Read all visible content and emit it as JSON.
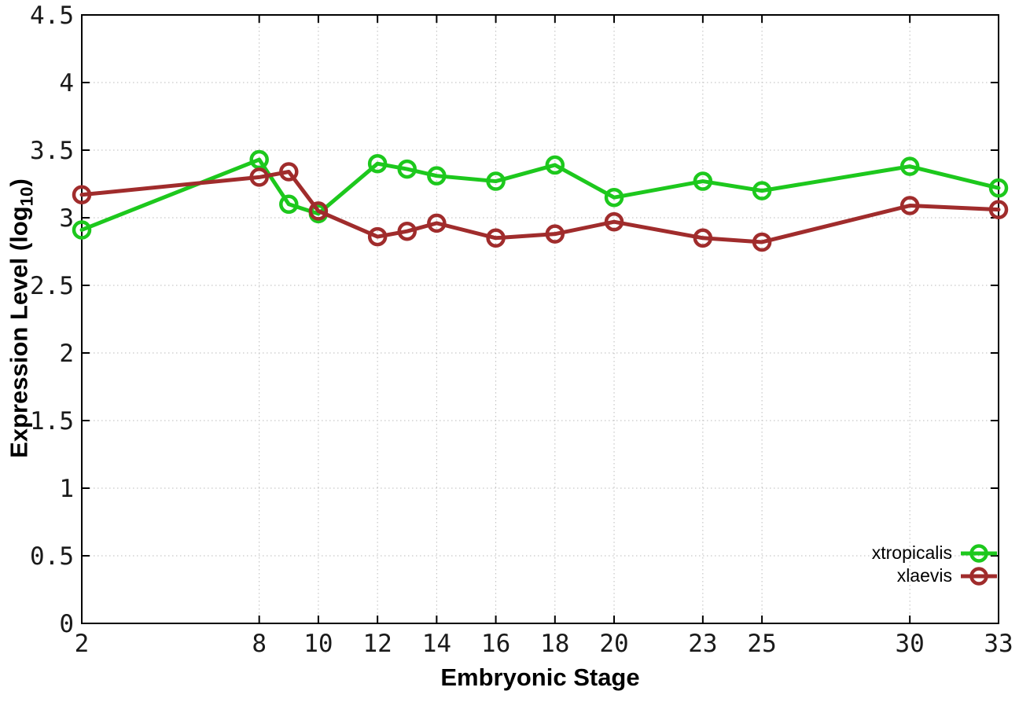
{
  "chart_data": {
    "type": "line",
    "title": "",
    "xlabel": "Embryonic Stage",
    "ylabel": "Expression Level (log10)",
    "ylabel_prefix": "Expression Level (log",
    "ylabel_sub": "10",
    "ylabel_suffix": ")",
    "xlim": [
      2,
      33
    ],
    "ylim": [
      0,
      4.5
    ],
    "grid": true,
    "legend_position": "bottom-right-inside",
    "background": "#ffffff",
    "axis_color": "#000000",
    "grid_color": "#bbbbbb",
    "tick_label_color": "#1a1a1a",
    "xticks": [
      {
        "v": 2,
        "label": "2"
      },
      {
        "v": 8,
        "label": "8"
      },
      {
        "v": 10,
        "label": "10"
      },
      {
        "v": 12,
        "label": "12"
      },
      {
        "v": 14,
        "label": "14"
      },
      {
        "v": 16,
        "label": "16"
      },
      {
        "v": 18,
        "label": "18"
      },
      {
        "v": 20,
        "label": "20"
      },
      {
        "v": 23,
        "label": "23"
      },
      {
        "v": 25,
        "label": "25"
      },
      {
        "v": 30,
        "label": "30"
      },
      {
        "v": 33,
        "label": "33"
      }
    ],
    "yticks": [
      {
        "v": 0,
        "label": "0"
      },
      {
        "v": 0.5,
        "label": "0.5"
      },
      {
        "v": 1,
        "label": "1"
      },
      {
        "v": 1.5,
        "label": "1.5"
      },
      {
        "v": 2,
        "label": "2"
      },
      {
        "v": 2.5,
        "label": "2.5"
      },
      {
        "v": 3,
        "label": "3"
      },
      {
        "v": 3.5,
        "label": "3.5"
      },
      {
        "v": 4,
        "label": "4"
      },
      {
        "v": 4.5,
        "label": "4.5"
      }
    ],
    "x": [
      2,
      8,
      9,
      10,
      12,
      13,
      14,
      16,
      18,
      20,
      23,
      25,
      30,
      33
    ],
    "series": [
      {
        "name": "xtropicalis",
        "color": "#1dc81d",
        "marker": "open-circle",
        "values": [
          2.91,
          3.43,
          3.1,
          3.03,
          3.4,
          3.36,
          3.31,
          3.27,
          3.39,
          3.15,
          3.27,
          3.2,
          3.38,
          3.22
        ]
      },
      {
        "name": "xlaevis",
        "color": "#a02c2c",
        "marker": "open-circle",
        "values": [
          3.17,
          3.3,
          3.34,
          3.05,
          2.86,
          2.9,
          2.96,
          2.85,
          2.88,
          2.97,
          2.85,
          2.82,
          3.09,
          3.06
        ]
      }
    ]
  }
}
